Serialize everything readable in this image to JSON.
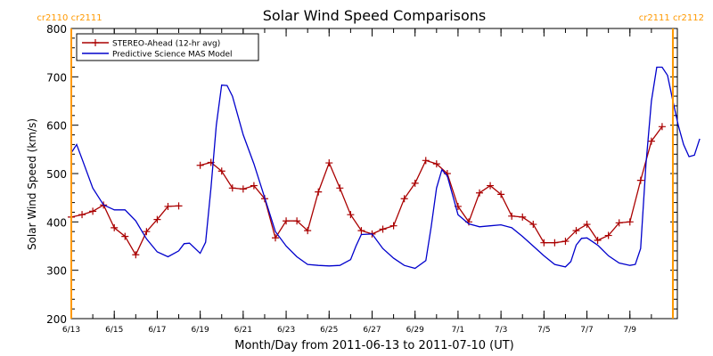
{
  "chart_data": {
    "type": "line",
    "title": "Solar Wind Speed Comparisons",
    "xlabel": "Month/Day from 2011-06-13 to 2011-07-10 (UT)",
    "ylabel": "Solar Wind Speed (km/s)",
    "ylim": [
      200,
      800
    ],
    "xlim": [
      "2011-06-13",
      "2011-07-11T05:00"
    ],
    "yticks": [
      200,
      300,
      400,
      500,
      600,
      700,
      800
    ],
    "xticks": [
      {
        "date": "2011-06-13",
        "label": "6/13"
      },
      {
        "date": "2011-06-15",
        "label": "6/15"
      },
      {
        "date": "2011-06-17",
        "label": "6/17"
      },
      {
        "date": "2011-06-19",
        "label": "6/19"
      },
      {
        "date": "2011-06-21",
        "label": "6/21"
      },
      {
        "date": "2011-06-23",
        "label": "6/23"
      },
      {
        "date": "2011-06-25",
        "label": "6/25"
      },
      {
        "date": "2011-06-27",
        "label": "6/27"
      },
      {
        "date": "2011-06-29",
        "label": "6/29"
      },
      {
        "date": "2011-07-01",
        "label": "7/1"
      },
      {
        "date": "2011-07-03",
        "label": "7/3"
      },
      {
        "date": "2011-07-05",
        "label": "7/5"
      },
      {
        "date": "2011-07-07",
        "label": "7/7"
      },
      {
        "date": "2011-07-09",
        "label": "7/9"
      }
    ],
    "legend_position": "top-left",
    "carrington_markers": [
      {
        "date": "2011-06-13",
        "label": "cr2110 cr2111",
        "color": "#ff9900"
      },
      {
        "date": "2011-07-11T00:00",
        "label": "cr2111 cr2112",
        "color": "#ff9900"
      }
    ],
    "series": [
      {
        "name": "STEREO-Ahead (12-hr avg)",
        "color": "#aa0000",
        "segments": [
          [
            [
              "2011-06-13T00:00",
              410
            ],
            [
              "2011-06-13T12:00",
              415
            ],
            [
              "2011-06-14T00:00",
              422
            ],
            [
              "2011-06-14T12:00",
              435
            ],
            [
              "2011-06-15T00:00",
              388
            ],
            [
              "2011-06-15T12:00",
              370
            ],
            [
              "2011-06-16T00:00",
              332
            ],
            [
              "2011-06-16T12:00",
              380
            ],
            [
              "2011-06-17T00:00",
              405
            ],
            [
              "2011-06-17T12:00",
              432
            ],
            [
              "2011-06-18T00:00",
              433
            ]
          ],
          [
            [
              "2011-06-19T00:00",
              517
            ],
            [
              "2011-06-19T12:00",
              523
            ],
            [
              "2011-06-20T00:00",
              505
            ],
            [
              "2011-06-20T12:00",
              470
            ],
            [
              "2011-06-21T00:00",
              468
            ],
            [
              "2011-06-21T12:00",
              475
            ],
            [
              "2011-06-22T00:00",
              448
            ],
            [
              "2011-06-22T12:00",
              367
            ],
            [
              "2011-06-23T00:00",
              402
            ],
            [
              "2011-06-23T12:00",
              402
            ],
            [
              "2011-06-24T00:00",
              382
            ],
            [
              "2011-06-24T12:00",
              462
            ],
            [
              "2011-06-25T00:00",
              522
            ],
            [
              "2011-06-25T12:00",
              470
            ],
            [
              "2011-06-26T00:00",
              415
            ],
            [
              "2011-06-26T12:00",
              382
            ],
            [
              "2011-06-27T00:00",
              375
            ],
            [
              "2011-06-27T12:00",
              385
            ],
            [
              "2011-06-28T00:00",
              392
            ],
            [
              "2011-06-28T12:00",
              448
            ],
            [
              "2011-06-29T00:00",
              480
            ],
            [
              "2011-06-29T12:00",
              527
            ],
            [
              "2011-06-30T00:00",
              520
            ],
            [
              "2011-06-30T12:00",
              500
            ],
            [
              "2011-07-01T00:00",
              432
            ],
            [
              "2011-07-01T12:00",
              400
            ],
            [
              "2011-07-02T00:00",
              460
            ],
            [
              "2011-07-02T12:00",
              475
            ],
            [
              "2011-07-03T00:00",
              457
            ],
            [
              "2011-07-03T12:00",
              412
            ],
            [
              "2011-07-04T00:00",
              410
            ],
            [
              "2011-07-04T12:00",
              395
            ],
            [
              "2011-07-05T00:00",
              357
            ],
            [
              "2011-07-05T12:00",
              357
            ],
            [
              "2011-07-06T00:00",
              360
            ],
            [
              "2011-07-06T12:00",
              382
            ],
            [
              "2011-07-07T00:00",
              395
            ],
            [
              "2011-07-07T12:00",
              362
            ],
            [
              "2011-07-08T00:00",
              372
            ],
            [
              "2011-07-08T12:00",
              398
            ],
            [
              "2011-07-09T00:00",
              400
            ],
            [
              "2011-07-09T12:00",
              486
            ],
            [
              "2011-07-10T00:00",
              567
            ],
            [
              "2011-07-10T12:00",
              597
            ]
          ]
        ]
      },
      {
        "name": "Predictive Science MAS Model",
        "color": "#0000cc",
        "segments": [
          [
            [
              "2011-06-13T00:00",
              543
            ],
            [
              "2011-06-13T06:00",
              560
            ],
            [
              "2011-06-13T12:00",
              530
            ],
            [
              "2011-06-14T00:00",
              470
            ],
            [
              "2011-06-14T12:00",
              435
            ],
            [
              "2011-06-15T00:00",
              425
            ],
            [
              "2011-06-15T12:00",
              425
            ],
            [
              "2011-06-16T00:00",
              402
            ],
            [
              "2011-06-16T12:00",
              365
            ],
            [
              "2011-06-17T00:00",
              338
            ],
            [
              "2011-06-17T12:00",
              328
            ],
            [
              "2011-06-18T00:00",
              340
            ],
            [
              "2011-06-18T06:00",
              355
            ],
            [
              "2011-06-18T12:00",
              356
            ],
            [
              "2011-06-19T00:00",
              335
            ],
            [
              "2011-06-19T06:00",
              358
            ],
            [
              "2011-06-19T12:00",
              470
            ],
            [
              "2011-06-19T18:00",
              600
            ],
            [
              "2011-06-20T00:00",
              683
            ],
            [
              "2011-06-20T06:00",
              682
            ],
            [
              "2011-06-20T12:00",
              660
            ],
            [
              "2011-06-21T00:00",
              580
            ],
            [
              "2011-06-21T12:00",
              520
            ],
            [
              "2011-06-22T00:00",
              450
            ],
            [
              "2011-06-22T12:00",
              380
            ],
            [
              "2011-06-23T00:00",
              350
            ],
            [
              "2011-06-23T12:00",
              328
            ],
            [
              "2011-06-24T00:00",
              312
            ],
            [
              "2011-06-24T12:00",
              310
            ],
            [
              "2011-06-25T00:00",
              309
            ],
            [
              "2011-06-25T12:00",
              310
            ],
            [
              "2011-06-26T00:00",
              322
            ],
            [
              "2011-06-26T06:00",
              350
            ],
            [
              "2011-06-26T12:00",
              374
            ],
            [
              "2011-06-27T00:00",
              375
            ],
            [
              "2011-06-27T12:00",
              345
            ],
            [
              "2011-06-28T00:00",
              325
            ],
            [
              "2011-06-28T12:00",
              310
            ],
            [
              "2011-06-29T00:00",
              304
            ],
            [
              "2011-06-29T12:00",
              320
            ],
            [
              "2011-06-29T18:00",
              390
            ],
            [
              "2011-06-30T00:00",
              470
            ],
            [
              "2011-06-30T06:00",
              508
            ],
            [
              "2011-06-30T12:00",
              495
            ],
            [
              "2011-07-01T00:00",
              415
            ],
            [
              "2011-07-01T12:00",
              396
            ],
            [
              "2011-07-02T00:00",
              390
            ],
            [
              "2011-07-02T12:00",
              392
            ],
            [
              "2011-07-03T00:00",
              394
            ],
            [
              "2011-07-03T12:00",
              388
            ],
            [
              "2011-07-04T00:00",
              370
            ],
            [
              "2011-07-04T12:00",
              350
            ],
            [
              "2011-07-05T00:00",
              330
            ],
            [
              "2011-07-05T12:00",
              312
            ],
            [
              "2011-07-06T00:00",
              307
            ],
            [
              "2011-07-06T06:00",
              318
            ],
            [
              "2011-07-06T12:00",
              352
            ],
            [
              "2011-07-06T18:00",
              366
            ],
            [
              "2011-07-07T00:00",
              367
            ],
            [
              "2011-07-07T12:00",
              352
            ],
            [
              "2011-07-08T00:00",
              330
            ],
            [
              "2011-07-08T12:00",
              315
            ],
            [
              "2011-07-09T00:00",
              310
            ],
            [
              "2011-07-09T06:00",
              312
            ],
            [
              "2011-07-09T12:00",
              345
            ],
            [
              "2011-07-09T18:00",
              520
            ],
            [
              "2011-07-10T00:00",
              650
            ],
            [
              "2011-07-10T06:00",
              720
            ],
            [
              "2011-07-10T12:00",
              720
            ],
            [
              "2011-07-10T18:00",
              703
            ],
            [
              "2011-07-11T00:00",
              650
            ],
            [
              "2011-07-11T06:00",
              600
            ],
            [
              "2011-07-11T12:00",
              560
            ],
            [
              "2011-07-11T18:00",
              535
            ],
            [
              "2011-07-12T00:00",
              538
            ],
            [
              "2011-07-12T06:00",
              572
            ]
          ]
        ]
      }
    ]
  }
}
